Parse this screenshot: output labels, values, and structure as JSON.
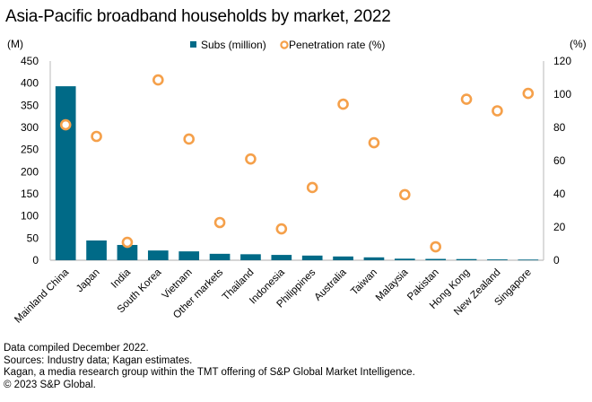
{
  "chart_data": {
    "type": "bar",
    "title": "Asia-Pacific broadband households by market, 2022",
    "xlabel": "",
    "ylabel": "(M)",
    "y2label": "(%)",
    "ylim": [
      0,
      450
    ],
    "y2lim": [
      0,
      120
    ],
    "yticks": [
      0,
      50,
      100,
      150,
      200,
      250,
      300,
      350,
      400,
      450
    ],
    "y2ticks": [
      0,
      20,
      40,
      60,
      80,
      100,
      120
    ],
    "grid": false,
    "legend_position": "top-center",
    "categories": [
      "Mainland China",
      "Japan",
      "India",
      "South Korea",
      "Vietnam",
      "Other markets",
      "Thailand",
      "Indonesia",
      "Philippines",
      "Australia",
      "Taiwan",
      "Malaysia",
      "Pakistan",
      "Hong Kong",
      "New Zealand",
      "Singapore"
    ],
    "series": [
      {
        "name": "Subs (million)",
        "type": "bar",
        "axis": "left",
        "color": "#006a87",
        "values": [
          393,
          44.6,
          34.5,
          22,
          20,
          14.5,
          13.5,
          12,
          10.5,
          8.5,
          6.5,
          3.5,
          3,
          2.6,
          1.8,
          1.4
        ]
      },
      {
        "name": "Penetration rate (%)",
        "type": "scatter",
        "axis": "right",
        "color": "#f5a04a",
        "values": [
          81.6,
          74.6,
          10.8,
          108.6,
          73,
          22.7,
          61,
          18.9,
          43.8,
          94,
          70.8,
          39.5,
          8.1,
          97,
          90,
          100.5
        ]
      }
    ]
  },
  "footer": {
    "lines": [
      "Data compiled December 2022.",
      "Sources: Industry data; Kagan estimates.",
      "Kagan, a media research group within the TMT offering of S&P Global Market Intelligence.",
      "© 2023 S&P Global."
    ]
  }
}
